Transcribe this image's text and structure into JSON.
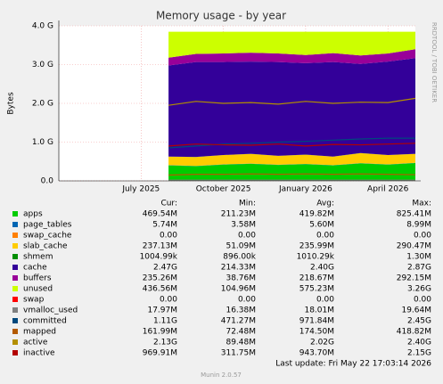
{
  "chart_data": {
    "type": "area",
    "title": "Memory usage - by year",
    "y_label": "Bytes",
    "watermark": "RRDTOOL / TOBI OETIKER",
    "last_update": "Last update: Fri May 22 17:03:14 2026",
    "footer": "Munin 2.0.57",
    "x": [
      "2025-08",
      "2025-09",
      "2025-10",
      "2025-11",
      "2025-12",
      "2026-01",
      "2026-02",
      "2026-03",
      "2026-04",
      "2026-05"
    ],
    "xlim": [
      "2025-04",
      "2026-05"
    ],
    "xticks": [
      {
        "value": "2025-07",
        "label": "July 2025"
      },
      {
        "value": "2025-10",
        "label": "October 2025"
      },
      {
        "value": "2026-01",
        "label": "January 2026"
      },
      {
        "value": "2026-04",
        "label": "April 2026"
      }
    ],
    "ylim": [
      0,
      4
    ],
    "yticks": [
      {
        "value": 0,
        "label": "0.0"
      },
      {
        "value": 1,
        "label": "1.0 G"
      },
      {
        "value": 2,
        "label": "2.0 G"
      },
      {
        "value": 3,
        "label": "3.0 G"
      },
      {
        "value": 4,
        "label": "4.0 G"
      }
    ],
    "grid": true,
    "legend_columns": [
      "Cur:",
      "Min:",
      "Avg:",
      "Max:"
    ],
    "series": [
      {
        "name": "apps",
        "color": "#00cc00",
        "style": "area",
        "values": [
          0.4,
          0.38,
          0.42,
          0.44,
          0.41,
          0.43,
          0.4,
          0.45,
          0.42,
          0.46
        ],
        "stats": [
          "469.54M",
          "211.23M",
          "419.82M",
          "825.41M"
        ]
      },
      {
        "name": "page_tables",
        "color": "#0066b3",
        "style": "area",
        "values": [
          0.006,
          0.006,
          0.006,
          0.006,
          0.006,
          0.006,
          0.006,
          0.006,
          0.006,
          0.006
        ],
        "stats": [
          "5.74M",
          "3.58M",
          "5.60M",
          "8.99M"
        ]
      },
      {
        "name": "swap_cache",
        "color": "#ff8000",
        "style": "area",
        "values": [
          0,
          0,
          0,
          0,
          0,
          0,
          0,
          0,
          0,
          0
        ],
        "stats": [
          "0.00",
          "0.00",
          "0.00",
          "0.00"
        ]
      },
      {
        "name": "slab_cache",
        "color": "#ffcc00",
        "style": "area",
        "values": [
          0.22,
          0.23,
          0.24,
          0.25,
          0.23,
          0.24,
          0.22,
          0.26,
          0.24,
          0.23
        ],
        "stats": [
          "237.13M",
          "51.09M",
          "235.99M",
          "290.47M"
        ]
      },
      {
        "name": "shmem",
        "color": "#008f00",
        "style": "area",
        "values": [
          0.001,
          0.001,
          0.001,
          0.001,
          0.001,
          0.001,
          0.001,
          0.001,
          0.001,
          0.001
        ],
        "stats": [
          "1004.99k",
          "896.00k",
          "1010.29k",
          "1.30M"
        ]
      },
      {
        "name": "cache",
        "color": "#330099",
        "style": "area",
        "values": [
          2.35,
          2.45,
          2.4,
          2.38,
          2.42,
          2.36,
          2.44,
          2.3,
          2.41,
          2.47
        ],
        "stats": [
          "2.47G",
          "214.33M",
          "2.40G",
          "2.87G"
        ]
      },
      {
        "name": "buffers",
        "color": "#990099",
        "style": "area",
        "values": [
          0.2,
          0.21,
          0.22,
          0.23,
          0.22,
          0.21,
          0.23,
          0.22,
          0.21,
          0.23
        ],
        "stats": [
          "235.26M",
          "38.76M",
          "218.67M",
          "292.15M"
        ]
      },
      {
        "name": "unused",
        "color": "#ccff00",
        "style": "area",
        "values": [
          0.67,
          0.57,
          0.56,
          0.54,
          0.56,
          0.6,
          0.55,
          0.61,
          0.56,
          0.45
        ],
        "stats": [
          "436.56M",
          "104.96M",
          "575.23M",
          "3.26G"
        ]
      },
      {
        "name": "swap",
        "color": "#ff0000",
        "style": "area",
        "values": [
          0,
          0,
          0,
          0,
          0,
          0,
          0,
          0,
          0,
          0
        ],
        "stats": [
          "0.00",
          "0.00",
          "0.00",
          "0.00"
        ]
      },
      {
        "name": "vmalloc_used",
        "color": "#808080",
        "style": "line",
        "values": [
          0.018,
          0.018,
          0.018,
          0.018,
          0.018,
          0.018,
          0.018,
          0.018,
          0.018,
          0.018
        ],
        "stats": [
          "17.97M",
          "16.38M",
          "18.01M",
          "19.64M"
        ]
      },
      {
        "name": "committed",
        "color": "#00487d",
        "style": "line",
        "values": [
          0.85,
          0.9,
          0.95,
          0.97,
          1.0,
          1.02,
          1.05,
          1.08,
          1.1,
          1.1
        ],
        "stats": [
          "1.11G",
          "471.27M",
          "971.84M",
          "2.45G"
        ]
      },
      {
        "name": "mapped",
        "color": "#b35a00",
        "style": "line",
        "values": [
          0.15,
          0.17,
          0.17,
          0.18,
          0.17,
          0.18,
          0.17,
          0.18,
          0.17,
          0.16
        ],
        "stats": [
          "161.99M",
          "72.48M",
          "174.50M",
          "418.82M"
        ]
      },
      {
        "name": "active",
        "color": "#b38f00",
        "style": "line",
        "values": [
          1.95,
          2.05,
          2.0,
          2.02,
          1.98,
          2.05,
          2.0,
          2.03,
          2.02,
          2.13
        ],
        "stats": [
          "2.13G",
          "89.48M",
          "2.02G",
          "2.40G"
        ]
      },
      {
        "name": "inactive",
        "color": "#b30000",
        "style": "line",
        "values": [
          0.9,
          0.95,
          0.93,
          0.92,
          0.95,
          0.9,
          0.94,
          0.93,
          0.95,
          0.97
        ],
        "stats": [
          "969.91M",
          "311.75M",
          "943.70M",
          "2.15G"
        ]
      }
    ]
  }
}
